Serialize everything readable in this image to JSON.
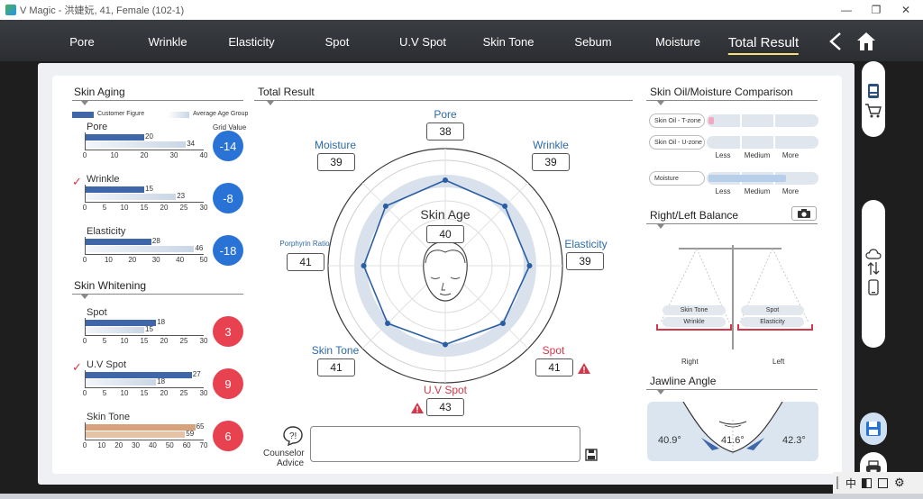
{
  "window": {
    "title": "V Magic - 洪婕妧, 41, Female (102-1)",
    "minimize": "—",
    "restore": "❐",
    "close": "✕"
  },
  "nav": {
    "tabs": [
      "Pore",
      "Wrinkle",
      "Elasticity",
      "Spot",
      "U.V Spot",
      "Skin Tone",
      "Sebum",
      "Moisture",
      "Total Result"
    ],
    "active": "Total Result"
  },
  "skin_aging": {
    "title": "Skin Aging",
    "legend_customer": "Customer Figure",
    "legend_average": "Average Age Group",
    "grid_value_label": "Grid Value",
    "items": [
      {
        "name": "Pore",
        "customer": 20,
        "average": 34,
        "ticks": [
          "0",
          "10",
          "20",
          "30",
          "40"
        ],
        "max": 40,
        "grid": "-14",
        "checked": false
      },
      {
        "name": "Wrinkle",
        "customer": 15,
        "average": 23,
        "ticks": [
          "0",
          "5",
          "10",
          "15",
          "20",
          "25",
          "30"
        ],
        "max": 30,
        "grid": "-8",
        "checked": true
      },
      {
        "name": "Elasticity",
        "customer": 28,
        "average": 46,
        "ticks": [
          "0",
          "10",
          "20",
          "30",
          "40",
          "50"
        ],
        "max": 50,
        "grid": "-18",
        "checked": false
      }
    ]
  },
  "skin_whitening": {
    "title": "Skin Whitening",
    "items": [
      {
        "name": "Spot",
        "customer": 18,
        "average": 15,
        "ticks": [
          "0",
          "5",
          "10",
          "15",
          "20",
          "25",
          "30"
        ],
        "max": 30,
        "grid": "3",
        "checked": false
      },
      {
        "name": "U.V Spot",
        "customer": 27,
        "average": 18,
        "ticks": [
          "0",
          "5",
          "10",
          "15",
          "20",
          "25",
          "30"
        ],
        "max": 30,
        "grid": "9",
        "checked": true
      },
      {
        "name": "Skin Tone",
        "customer": 65,
        "average": 59,
        "ticks": [
          "0",
          "10",
          "20",
          "30",
          "40",
          "50",
          "60",
          "70"
        ],
        "max": 70,
        "grid": "6",
        "checked": false
      }
    ]
  },
  "total_result": {
    "title": "Total Result",
    "skin_age_label": "Skin Age",
    "skin_age": "40",
    "axes": [
      {
        "name": "Pore",
        "value": "38",
        "warn": false
      },
      {
        "name": "Wrinkle",
        "value": "39",
        "warn": false
      },
      {
        "name": "Elasticity",
        "value": "39",
        "warn": false
      },
      {
        "name": "Spot",
        "value": "41",
        "warn": true
      },
      {
        "name": "U.V Spot",
        "value": "43",
        "warn": true
      },
      {
        "name": "Skin Tone",
        "value": "41",
        "warn": false
      },
      {
        "name": "Porphyrin Ratio",
        "value": "41",
        "warn": false
      },
      {
        "name": "Moisture",
        "value": "39",
        "warn": false
      }
    ],
    "counselor_label_1": "Counselor",
    "counselor_label_2": "Advice",
    "counselor_text": ""
  },
  "oil_moisture": {
    "title": "Skin Oil/Moisture Comparison",
    "rows": [
      {
        "label": "Skin Oil - T-zone",
        "level": 0.05
      },
      {
        "label": "Skin Oil - U-zone",
        "level": 0.0
      },
      {
        "label": "Moisture",
        "level": 0.72
      }
    ],
    "scale": [
      "Less",
      "Medium",
      "More"
    ]
  },
  "balance": {
    "title": "Right/Left Balance",
    "right_items": [
      "Skin Tone",
      "Wrinkle"
    ],
    "left_items": [
      "Spot",
      "Elasticity"
    ],
    "right_label": "Right",
    "left_label": "Left"
  },
  "jawline": {
    "title": "Jawline Angle",
    "left": "40.9°",
    "center": "41.6°",
    "right": "42.3°"
  },
  "tray": {
    "ime": "中"
  },
  "colors": {
    "customer": "#3e66a8",
    "average": "#c9d6e6",
    "skin_tone": "#d6a27e",
    "blue_circle": "#2a73d6",
    "red_circle": "#e8414f",
    "accent_blue": "#2c6aa8",
    "red": "#d3374a"
  }
}
